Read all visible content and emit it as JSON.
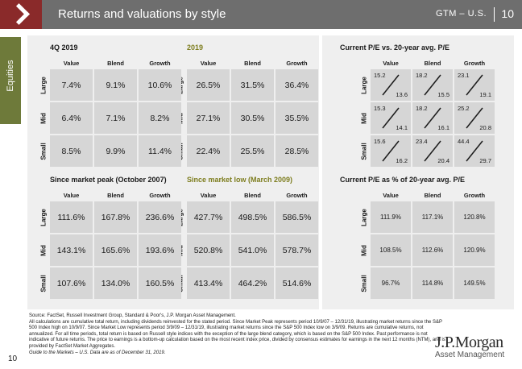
{
  "header": {
    "title": "Returns and valuations by style",
    "gtm": "GTM – U.S.",
    "page": "10"
  },
  "side_tab": "Equities",
  "columns": [
    "Value",
    "Blend",
    "Growth"
  ],
  "rows": [
    "Large",
    "Mid",
    "Small"
  ],
  "q4_2019": {
    "title": "4Q 2019",
    "cells": [
      [
        "7.4%",
        "9.1%",
        "10.6%"
      ],
      [
        "6.4%",
        "7.1%",
        "8.2%"
      ],
      [
        "8.5%",
        "9.9%",
        "11.4%"
      ]
    ]
  },
  "y2019": {
    "title": "2019",
    "cells": [
      [
        "26.5%",
        "31.5%",
        "36.4%"
      ],
      [
        "27.1%",
        "30.5%",
        "35.5%"
      ],
      [
        "22.4%",
        "25.5%",
        "28.5%"
      ]
    ]
  },
  "since_peak": {
    "title": "Since market peak (October 2007)",
    "cells": [
      [
        "111.6%",
        "167.8%",
        "236.6%"
      ],
      [
        "143.1%",
        "165.6%",
        "193.6%"
      ],
      [
        "107.6%",
        "134.0%",
        "160.5%"
      ]
    ]
  },
  "since_low": {
    "title": "Since market low (March 2009)",
    "cells": [
      [
        "427.7%",
        "498.5%",
        "586.5%"
      ],
      [
        "520.8%",
        "541.0%",
        "578.7%"
      ],
      [
        "413.4%",
        "464.2%",
        "514.6%"
      ]
    ]
  },
  "pe_vs_avg": {
    "title": "Current P/E vs. 20-year avg. P/E",
    "cells": [
      [
        [
          "15.2",
          "13.6"
        ],
        [
          "18.2",
          "15.5"
        ],
        [
          "23.1",
          "19.1"
        ]
      ],
      [
        [
          "15.3",
          "14.1"
        ],
        [
          "18.2",
          "16.1"
        ],
        [
          "25.2",
          "20.8"
        ]
      ],
      [
        [
          "15.6",
          "16.2"
        ],
        [
          "23.4",
          "20.4"
        ],
        [
          "44.4",
          "29.7"
        ]
      ]
    ]
  },
  "pe_pct": {
    "title": "Current P/E as % of 20-year avg. P/E",
    "cells": [
      [
        "111.9%",
        "117.1%",
        "120.8%"
      ],
      [
        "108.5%",
        "112.6%",
        "120.9%"
      ],
      [
        "96.7%",
        "114.8%",
        "149.5%"
      ]
    ]
  },
  "footer": {
    "source": "Source: FactSet, Russell Investment Group, Standard & Poor's, J.P. Morgan Asset Management.",
    "body": "All calculations are cumulative total return, including dividends reinvested for the stated period. Since Market Peak represents period 10/9/07 – 12/31/19, illustrating market returns since the S&P 500 Index high on 10/9/07. Since Market Low represents period 3/9/09 – 12/31/19, illustrating market returns since the S&P 500 Index low on 3/9/09. Returns are cumulative returns, not annualized. For all time periods, total return is based on Russell style indices with the exception of the large blend category, which is based on the S&P 500 Index. Past performance is not indicative of future returns. The price to earnings is a bottom-up calculation based on the most recent index price, divided by consensus estimates for earnings in the next 12 months (NTM), and is provided by FactSet Market Aggregates.",
    "guide": "Guide to the Markets – U.S. Data are as of December 31, 2019."
  },
  "page_number": "10",
  "logo": {
    "main": "J.P.Morgan",
    "sub": "Asset Management"
  }
}
